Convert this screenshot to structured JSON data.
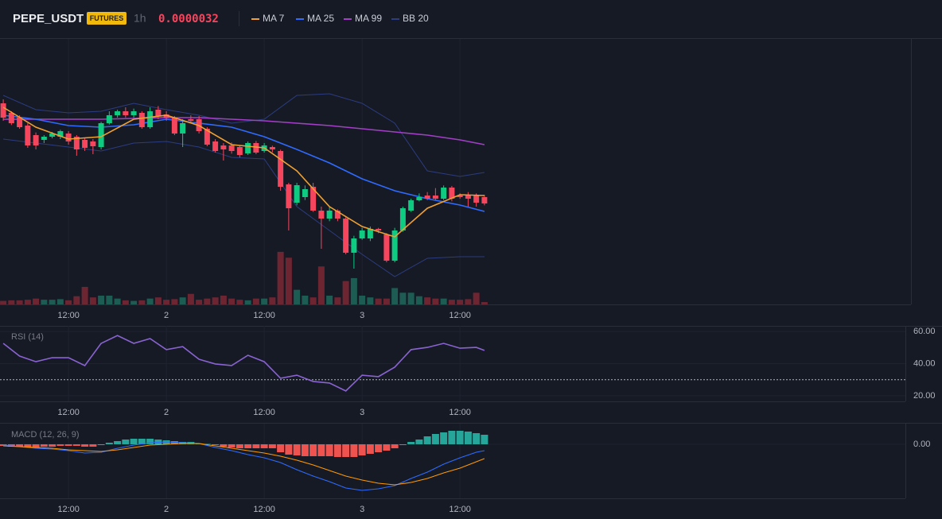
{
  "header": {
    "symbol": "PEPE_USDT",
    "badge": "FUTURES",
    "interval": "1h",
    "price": "0.0000032"
  },
  "chart_data": [
    {
      "type": "candlestick",
      "xlim": [
        -0.4,
        111.3
      ],
      "xticks": [
        {
          "value": 8,
          "label": "12:00"
        },
        {
          "value": 20,
          "label": "2"
        },
        {
          "value": 32,
          "label": "12:00"
        },
        {
          "value": 44,
          "label": "3"
        },
        {
          "value": 56,
          "label": "12:00"
        }
      ],
      "ylim": [
        2.801e-06,
        3.803e-06
      ],
      "up_color": "#0ecb81",
      "down_color": "#f6465d",
      "open": [
        3.56e-06,
        3.524e-06,
        3.506e-06,
        3.476e-06,
        3.44e-06,
        3.422e-06,
        3.434e-06,
        3.434e-06,
        3.446e-06,
        3.434e-06,
        3.422e-06,
        3.416e-06,
        3.395e-06,
        3.485e-06,
        3.515e-06,
        3.53e-06,
        3.515e-06,
        3.524e-06,
        3.47e-06,
        3.536e-06,
        3.518e-06,
        3.506e-06,
        3.446e-06,
        3.5e-06,
        3.5e-06,
        3.464e-06,
        3.416e-06,
        3.401e-06,
        3.401e-06,
        3.395e-06,
        3.371e-06,
        3.41e-06,
        3.38e-06,
        3.395e-06,
        3.38e-06,
        3.254e-06,
        3.185e-06,
        3.206e-06,
        3.245e-06,
        3.155e-06,
        3.125e-06,
        3.155e-06,
        3.125e-06,
        2.996e-06,
        3.05e-06,
        3.05e-06,
        3.086e-06,
        3.065e-06,
        2.966e-06,
        3.08e-06,
        3.155e-06,
        3.194e-06,
        3.212e-06,
        3.212e-06,
        3.2e-06,
        3.242e-06,
        3.212e-06,
        3.212e-06,
        3.215e-06,
        3.206e-06
      ],
      "high": [
        3.575e-06,
        3.53e-06,
        3.515e-06,
        3.485e-06,
        3.45e-06,
        3.44e-06,
        3.452e-06,
        3.46e-06,
        3.455e-06,
        3.44e-06,
        3.43e-06,
        3.425e-06,
        3.49e-06,
        3.53e-06,
        3.536e-06,
        3.545e-06,
        3.54e-06,
        3.53e-06,
        3.545e-06,
        3.55e-06,
        3.53e-06,
        3.512e-06,
        3.5e-06,
        3.515e-06,
        3.512e-06,
        3.47e-06,
        3.425e-06,
        3.41e-06,
        3.412e-06,
        3.4e-06,
        3.416e-06,
        3.418e-06,
        3.41e-06,
        3.4e-06,
        3.385e-06,
        3.26e-06,
        3.26e-06,
        3.25e-06,
        3.26e-06,
        3.17e-06,
        3.17e-06,
        3.16e-06,
        3.13e-06,
        3.06e-06,
        3.09e-06,
        3.095e-06,
        3.09e-06,
        3.07e-06,
        3.09e-06,
        3.17e-06,
        3.2e-06,
        3.22e-06,
        3.225e-06,
        3.24e-06,
        3.25e-06,
        3.248e-06,
        3.22e-06,
        3.225e-06,
        3.22e-06,
        3.215e-06
      ],
      "low": [
        3.494e-06,
        3.478e-06,
        3.464e-06,
        3.392e-06,
        3.386e-06,
        3.41e-06,
        3.428e-06,
        3.425e-06,
        3.404e-06,
        3.362e-06,
        3.38e-06,
        3.368e-06,
        3.386e-06,
        3.48e-06,
        3.506e-06,
        3.506e-06,
        3.506e-06,
        3.464e-06,
        3.464e-06,
        3.5e-06,
        3.494e-06,
        3.44e-06,
        3.395e-06,
        3.485e-06,
        3.446e-06,
        3.398e-06,
        3.374e-06,
        3.344e-06,
        3.37e-06,
        3.356e-06,
        3.365e-06,
        3.368e-06,
        3.374e-06,
        3.375e-06,
        3.23e-06,
        3.08e-06,
        3.175e-06,
        3.195e-06,
        3.15e-06,
        3.011e-06,
        3.115e-06,
        3.115e-06,
        2.99e-06,
        2.936e-06,
        3.045e-06,
        3.04e-06,
        3.07e-06,
        2.96e-06,
        2.96e-06,
        3.075e-06,
        3.15e-06,
        3.19e-06,
        3.195e-06,
        3.195e-06,
        3.195e-06,
        3.19e-06,
        3.2e-06,
        3.17e-06,
        3.17e-06,
        3.175e-06
      ],
      "close": [
        3.506e-06,
        3.485e-06,
        3.47e-06,
        3.401e-06,
        3.401e-06,
        3.434e-06,
        3.446e-06,
        3.455e-06,
        3.416e-06,
        3.386e-06,
        3.392e-06,
        3.398e-06,
        3.485e-06,
        3.515e-06,
        3.53e-06,
        3.515e-06,
        3.53e-06,
        3.47e-06,
        3.53e-06,
        3.512e-06,
        3.506e-06,
        3.446e-06,
        3.485e-06,
        3.494e-06,
        3.455e-06,
        3.404e-06,
        3.38e-06,
        3.386e-06,
        3.38e-06,
        3.365e-06,
        3.41e-06,
        3.374e-06,
        3.401e-06,
        3.386e-06,
        3.245e-06,
        3.164e-06,
        3.251e-06,
        3.236e-06,
        3.155e-06,
        3.125e-06,
        3.155e-06,
        3.125e-06,
        2.996e-06,
        3.05e-06,
        3.08e-06,
        3.086e-06,
        3.08e-06,
        2.966e-06,
        3.08e-06,
        3.164e-06,
        3.194e-06,
        3.206e-06,
        3.2e-06,
        3.2e-06,
        3.242e-06,
        3.2e-06,
        3.206e-06,
        3.2e-06,
        3.185e-06,
        3.182e-06
      ],
      "volume": [
        6,
        7,
        7,
        8,
        10,
        8,
        8,
        9,
        7,
        14,
        30,
        12,
        15,
        15,
        10,
        7,
        6,
        7,
        10,
        12,
        8,
        9,
        12,
        18,
        8,
        10,
        12,
        15,
        10,
        8,
        7,
        10,
        10,
        12,
        90,
        80,
        25,
        15,
        12,
        65,
        15,
        12,
        40,
        45,
        15,
        12,
        10,
        10,
        28,
        20,
        20,
        14,
        12,
        10,
        10,
        8,
        8,
        9,
        20,
        4
      ],
      "volume_ylim": [
        0,
        100
      ],
      "volume_colors": [
        "#1d5c52",
        "#6e2532"
      ],
      "lines": [
        {
          "name": "MA 7",
          "color": "#f0a030",
          "x": [
            0,
            4,
            8,
            12,
            16,
            20,
            24,
            28,
            32,
            36,
            40,
            44,
            48,
            52,
            56,
            59
          ],
          "values": [
            3.545e-06,
            3.47e-06,
            3.425e-06,
            3.434e-06,
            3.5e-06,
            3.515e-06,
            3.476e-06,
            3.404e-06,
            3.392e-06,
            3.305e-06,
            3.17e-06,
            3.095e-06,
            3.056e-06,
            3.164e-06,
            3.215e-06,
            3.212e-06
          ]
        },
        {
          "name": "MA 25",
          "color": "#2f6bff",
          "x": [
            0,
            4,
            8,
            12,
            16,
            20,
            24,
            28,
            32,
            36,
            40,
            44,
            48,
            52,
            56,
            59
          ],
          "values": [
            3.515e-06,
            3.5e-06,
            3.476e-06,
            3.47e-06,
            3.479e-06,
            3.5e-06,
            3.485e-06,
            3.47e-06,
            3.434e-06,
            3.386e-06,
            3.335e-06,
            3.275e-06,
            3.23e-06,
            3.2e-06,
            3.176e-06,
            3.152e-06
          ]
        },
        {
          "name": "MA 99",
          "color": "#a33fc7",
          "x": [
            0,
            4,
            8,
            12,
            16,
            20,
            24,
            28,
            32,
            36,
            40,
            44,
            48,
            52,
            56,
            59
          ],
          "values": [
            3.5e-06,
            3.5e-06,
            3.5e-06,
            3.5e-06,
            3.503e-06,
            3.506e-06,
            3.506e-06,
            3.5e-06,
            3.494e-06,
            3.485e-06,
            3.476e-06,
            3.464e-06,
            3.452e-06,
            3.44e-06,
            3.422e-06,
            3.404e-06
          ]
        },
        {
          "name": "BB 20",
          "color": "#2c3c80",
          "x": [
            0,
            4,
            8,
            12,
            16,
            20,
            24,
            28,
            32,
            36,
            40,
            44,
            48,
            52,
            56,
            59
          ],
          "values": [
            3.59e-06,
            3.536e-06,
            3.524e-06,
            3.53e-06,
            3.56e-06,
            3.536e-06,
            3.515e-06,
            3.485e-06,
            3.5e-06,
            3.59e-06,
            3.596e-06,
            3.56e-06,
            3.485e-06,
            3.305e-06,
            3.284e-06,
            3.299e-06
          ],
          "lower": [
            3.425e-06,
            3.41e-06,
            3.395e-06,
            3.38e-06,
            3.41e-06,
            3.416e-06,
            3.395e-06,
            3.356e-06,
            3.35e-06,
            3.17e-06,
            3.08e-06,
            2.99e-06,
            2.906e-06,
            2.975e-06,
            2.981e-06,
            2.981e-06
          ]
        }
      ]
    },
    {
      "type": "line",
      "title": "RSI (14)",
      "xlim": [
        -0.4,
        111.3
      ],
      "xticks": [
        {
          "value": 8,
          "label": "12:00"
        },
        {
          "value": 20,
          "label": "2"
        },
        {
          "value": 32,
          "label": "12:00"
        },
        {
          "value": 44,
          "label": "3"
        },
        {
          "value": 56,
          "label": "12:00"
        }
      ],
      "ylim": [
        16.5,
        63.5
      ],
      "yticks": [
        {
          "value": 20,
          "label": "20.00"
        },
        {
          "value": 40,
          "label": "40.00"
        },
        {
          "value": 60,
          "label": "60.00"
        }
      ],
      "level": 30,
      "color": "#8a63d2",
      "x": [
        0,
        2,
        4,
        6,
        8,
        10,
        12,
        14,
        16,
        18,
        20,
        22,
        24,
        26,
        28,
        30,
        32,
        34,
        36,
        38,
        40,
        42,
        44,
        46,
        48,
        50,
        52,
        54,
        56,
        58,
        59
      ],
      "values": [
        52.6,
        44.7,
        41.2,
        43.7,
        43.7,
        38.8,
        52.6,
        57.5,
        52.6,
        55.6,
        48.7,
        50.6,
        42.7,
        39.8,
        38.8,
        45.2,
        41.2,
        30.9,
        32.8,
        28.9,
        27.9,
        23.0,
        32.8,
        31.9,
        37.8,
        48.7,
        50.1,
        52.6,
        49.6,
        50.1,
        48.2
      ]
    },
    {
      "type": "macd",
      "title": "MACD (12, 26, 9)",
      "xlim": [
        -0.4,
        111.3
      ],
      "xticks": [
        {
          "value": 8,
          "label": "12:00"
        },
        {
          "value": 20,
          "label": "2"
        },
        {
          "value": 32,
          "label": "12:00"
        },
        {
          "value": 44,
          "label": "3"
        },
        {
          "value": 56,
          "label": "12:00"
        }
      ],
      "ylim": [
        -68,
        26
      ],
      "yticks": [
        {
          "value": 0,
          "label": "0.00"
        }
      ],
      "hist_colors": [
        "#26a69a",
        "#ef5350"
      ],
      "histogram": [
        -2,
        -3,
        -3,
        -4,
        -4,
        -3,
        -3,
        -2,
        -2,
        -2,
        -3,
        -3,
        -1,
        2,
        4,
        6,
        7,
        7,
        7,
        6,
        5,
        4,
        3,
        3,
        1,
        0.5,
        -1,
        -3,
        -4,
        -5,
        -5,
        -5,
        -5,
        -5,
        -10,
        -13,
        -14,
        -15,
        -15,
        -15,
        -15,
        -16,
        -16,
        -16,
        -14,
        -12,
        -10,
        -8,
        -5,
        -1,
        3,
        6,
        10,
        13,
        15,
        17,
        17,
        16,
        14,
        12
      ],
      "lines": [
        {
          "color": "#2f6bff",
          "x": [
            0,
            2,
            4,
            6,
            8,
            10,
            12,
            14,
            16,
            18,
            20,
            22,
            24,
            26,
            28,
            30,
            32,
            34,
            36,
            38,
            40,
            42,
            44,
            46,
            48,
            50,
            52,
            54,
            56,
            58,
            59
          ],
          "values": [
            -1,
            -3,
            -5,
            -6,
            -8,
            -11,
            -10,
            -5,
            -1,
            2,
            3,
            2,
            1,
            -4,
            -8,
            -13,
            -17,
            -23,
            -32,
            -40,
            -47,
            -55,
            -58,
            -56,
            -52,
            -43,
            -35,
            -25,
            -17,
            -10,
            -8
          ]
        },
        {
          "color": "#ff9800",
          "x": [
            0,
            2,
            4,
            6,
            8,
            10,
            12,
            14,
            16,
            18,
            20,
            22,
            24,
            26,
            28,
            30,
            32,
            34,
            36,
            38,
            40,
            42,
            44,
            46,
            48,
            50,
            52,
            54,
            56,
            58,
            59
          ],
          "values": [
            -2,
            -3,
            -4,
            -5,
            -7,
            -8,
            -9,
            -7,
            -4,
            -1,
            0,
            1,
            1,
            -2,
            -5,
            -8,
            -11,
            -15,
            -20,
            -26,
            -33,
            -40,
            -45,
            -49,
            -51,
            -48,
            -43,
            -36,
            -30,
            -22,
            -18
          ]
        }
      ]
    }
  ]
}
